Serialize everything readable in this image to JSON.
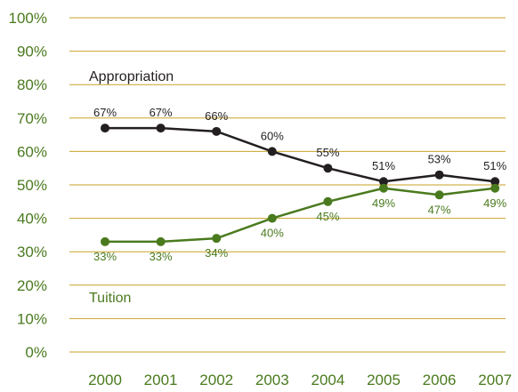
{
  "chart_data": {
    "type": "line",
    "categories": [
      "2000",
      "2001",
      "2002",
      "2003",
      "2004",
      "2005",
      "2006",
      "2007"
    ],
    "series": [
      {
        "name": "Appropriation",
        "values": [
          67,
          67,
          66,
          60,
          55,
          51,
          53,
          51
        ],
        "labels": [
          "67%",
          "67%",
          "66%",
          "60%",
          "55%",
          "51%",
          "53%",
          "51%"
        ],
        "color": "#231f20"
      },
      {
        "name": "Tuition",
        "values": [
          33,
          33,
          34,
          40,
          45,
          49,
          47,
          49
        ],
        "labels": [
          "33%",
          "33%",
          "34%",
          "40%",
          "45%",
          "49%",
          "47%",
          "49%"
        ],
        "color": "#4a7a1e"
      }
    ],
    "y_ticks": [
      "0%",
      "10%",
      "20%",
      "30%",
      "40%",
      "50%",
      "60%",
      "70%",
      "80%",
      "90%",
      "100%"
    ],
    "ylim": [
      0,
      100
    ],
    "grid": true,
    "gridline_color": "#c9a227",
    "axis_label_color": "#4a7a1e"
  }
}
